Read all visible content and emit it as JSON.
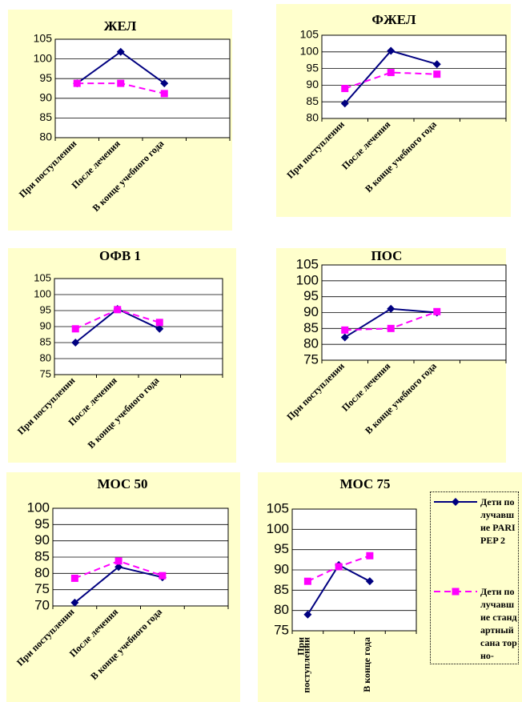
{
  "chart_data": [
    {
      "type": "line",
      "title": "ЖЕЛ",
      "categories": [
        "При поступлении",
        "После лечения",
        "В конце учебного года",
        null
      ],
      "ylim": [
        80,
        105
      ],
      "yticks": [
        80,
        85,
        90,
        95,
        100,
        105
      ],
      "grid": true,
      "series": [
        {
          "color": "#000080",
          "values": [
            93.8,
            101.8,
            93.8,
            null
          ]
        },
        {
          "color": "#ff00ff",
          "values": [
            93.8,
            93.8,
            91.2,
            null
          ]
        }
      ]
    },
    {
      "type": "line",
      "title": "ФЖЕЛ",
      "categories": [
        "При поступлении",
        "После лечения",
        "В конце учебного года",
        null
      ],
      "ylim": [
        80,
        105
      ],
      "yticks": [
        80,
        85,
        90,
        95,
        100,
        105
      ],
      "grid": true,
      "series": [
        {
          "color": "#000080",
          "values": [
            84.5,
            100.3,
            96.3,
            null
          ]
        },
        {
          "color": "#ff00ff",
          "values": [
            89,
            93.8,
            93.3,
            null
          ]
        }
      ]
    },
    {
      "type": "line",
      "title": "ОФВ 1",
      "categories": [
        "При поступлении",
        "После лечения",
        "В конце учебного года",
        null
      ],
      "ylim": [
        75,
        105
      ],
      "yticks": [
        75,
        80,
        85,
        90,
        95,
        100,
        105
      ],
      "grid": true,
      "series": [
        {
          "color": "#000080",
          "values": [
            85,
            95.5,
            89.3,
            null
          ]
        },
        {
          "color": "#ff00ff",
          "values": [
            89.3,
            95.3,
            91.3,
            null
          ]
        }
      ]
    },
    {
      "type": "line",
      "title": "ПОС",
      "categories": [
        "При поступлении",
        "После лечения",
        "В конце учебного года",
        null
      ],
      "ylim": [
        75,
        105
      ],
      "yticks": [
        75,
        80,
        85,
        90,
        95,
        100,
        105
      ],
      "grid": true,
      "series": [
        {
          "color": "#000080",
          "values": [
            82.2,
            91.2,
            90,
            null
          ]
        },
        {
          "color": "#ff00ff",
          "values": [
            84.5,
            85,
            90.3,
            null
          ]
        }
      ]
    },
    {
      "type": "line",
      "title": "МОС 50",
      "categories": [
        "При поступлении",
        "После лечения",
        "В конце учебного года",
        null
      ],
      "ylim": [
        70,
        100
      ],
      "yticks": [
        70,
        75,
        80,
        85,
        90,
        95,
        100
      ],
      "grid": true,
      "series": [
        {
          "color": "#000080",
          "values": [
            71,
            82,
            78.8,
            null
          ]
        },
        {
          "color": "#ff00ff",
          "values": [
            78.5,
            83.8,
            79.3,
            null
          ]
        }
      ]
    },
    {
      "type": "line",
      "title": "МОС 75",
      "categories": [
        "При поступлении",
        null,
        "В конце года",
        null
      ],
      "ylim": [
        75,
        105
      ],
      "yticks": [
        75,
        80,
        85,
        90,
        95,
        100,
        105
      ],
      "grid": true,
      "legend": "right",
      "series": [
        {
          "name": "Дети получавшие PARI PEP 2",
          "color": "#000080",
          "values": [
            79,
            91.2,
            87.2,
            null
          ]
        },
        {
          "name": "Дети получавшие стандартный сана торно-",
          "color": "#ff00ff",
          "values": [
            87.2,
            90.8,
            93.5,
            null
          ]
        }
      ]
    }
  ]
}
